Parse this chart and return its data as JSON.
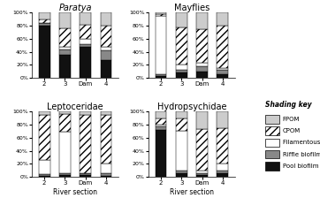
{
  "titles": [
    "Paratya",
    "Mayflies",
    "Leptoceridae",
    "Hydropsychidae"
  ],
  "title_italic": [
    true,
    false,
    false,
    false
  ],
  "categories": [
    "2",
    "3",
    "Dam",
    "4"
  ],
  "xlabel": "River section",
  "data": {
    "Paratya": {
      "Pool biofilm": [
        80,
        35,
        47,
        27
      ],
      "Riffle biofilm": [
        5,
        8,
        5,
        15
      ],
      "Filamentous algae": [
        0,
        5,
        8,
        5
      ],
      "CPOM": [
        5,
        28,
        22,
        33
      ],
      "FPOM": [
        10,
        24,
        18,
        20
      ]
    },
    "Mayflies": {
      "Pool biofilm": [
        3,
        8,
        10,
        5
      ],
      "Riffle biofilm": [
        2,
        5,
        8,
        8
      ],
      "Filamentous algae": [
        90,
        7,
        5,
        2
      ],
      "CPOM": [
        3,
        58,
        52,
        65
      ],
      "FPOM": [
        2,
        22,
        25,
        20
      ]
    },
    "Leptoceridae": {
      "Pool biofilm": [
        2,
        3,
        3,
        2
      ],
      "Riffle biofilm": [
        2,
        3,
        2,
        3
      ],
      "Filamentous algae": [
        22,
        63,
        0,
        15
      ],
      "CPOM": [
        69,
        28,
        90,
        75
      ],
      "FPOM": [
        5,
        3,
        5,
        5
      ]
    },
    "Hydropsychidae": {
      "Pool biofilm": [
        72,
        5,
        3,
        5
      ],
      "Riffle biofilm": [
        5,
        5,
        3,
        5
      ],
      "Filamentous algae": [
        3,
        60,
        3,
        10
      ],
      "CPOM": [
        10,
        20,
        65,
        55
      ],
      "FPOM": [
        10,
        10,
        26,
        25
      ]
    }
  },
  "layers": [
    "Pool biofilm",
    "Riffle biofilm",
    "Filamentous algae",
    "CPOM",
    "FPOM"
  ],
  "color_map": {
    "Pool biofilm": "#111111",
    "Riffle biofilm": "#888888",
    "Filamentous algae": "#ffffff",
    "CPOM": "#ffffff",
    "FPOM": "#cccccc"
  },
  "hatch_map": {
    "Pool biofilm": "",
    "Riffle biofilm": "",
    "Filamentous algae": "",
    "CPOM": "////",
    "FPOM": ""
  },
  "legend_title": "Shading key",
  "legend_items": [
    {
      "label": "FPOM",
      "color": "#cccccc",
      "hatch": ""
    },
    {
      "label": "CPOM",
      "color": "#ffffff",
      "hatch": "////"
    },
    {
      "label": "Filamentous algae",
      "color": "#ffffff",
      "hatch": ""
    },
    {
      "label": "Riffle biofilm",
      "color": "#888888",
      "hatch": ""
    },
    {
      "label": "Pool biofilm",
      "color": "#111111",
      "hatch": ""
    }
  ]
}
